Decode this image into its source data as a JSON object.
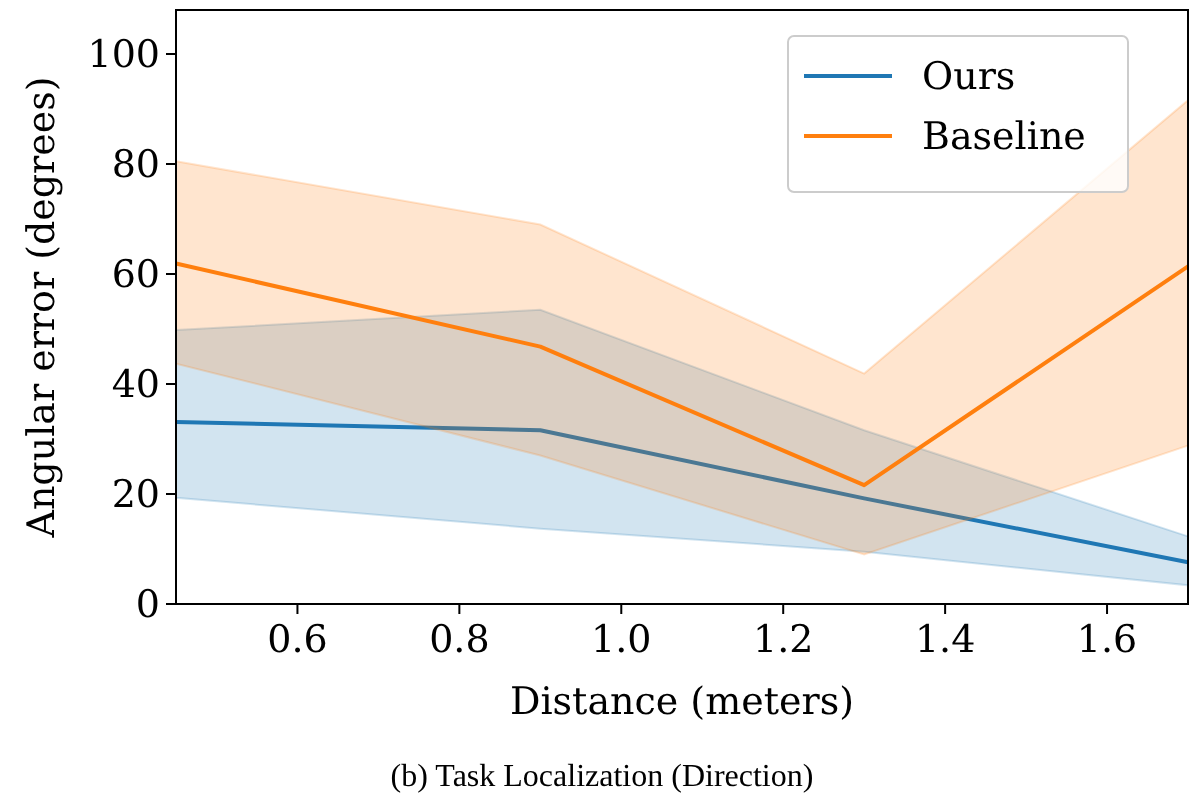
{
  "chart_data": {
    "type": "line",
    "xlabel": "Distance (meters)",
    "ylabel": "Angular error (degrees)",
    "annotations": [
      "(b) Task Localization (Direction)"
    ],
    "x": [
      0.45,
      0.9,
      1.3,
      1.7
    ],
    "series": [
      {
        "name": "Ours",
        "color": "#1f77b4",
        "values": [
          33.1,
          31.6,
          19.2,
          7.6
        ],
        "lower": [
          19.3,
          13.7,
          9.5,
          3.4
        ],
        "upper": [
          49.8,
          53.5,
          31.6,
          12.3
        ]
      },
      {
        "name": "Baseline",
        "color": "#ff7f0e",
        "values": [
          61.9,
          46.8,
          21.6,
          61.4
        ],
        "lower": [
          43.7,
          27,
          9,
          28.8
        ],
        "upper": [
          80.5,
          69,
          41.9,
          91.6
        ]
      }
    ],
    "xlim": [
      0.45,
      1.7
    ],
    "xticks": [
      {
        "value": 0.6,
        "label": "0.6"
      },
      {
        "value": 0.8,
        "label": "0.8"
      },
      {
        "value": 1.0,
        "label": "1.0"
      },
      {
        "value": 1.2,
        "label": "1.2"
      },
      {
        "value": 1.4,
        "label": "1.4"
      },
      {
        "value": 1.6,
        "label": "1.6"
      }
    ],
    "ylim": [
      0,
      108
    ],
    "yticks": [
      0,
      20,
      40,
      60,
      80,
      100
    ],
    "grid": false,
    "legend": "top right",
    "line_style": "solid",
    "marker": "none"
  }
}
